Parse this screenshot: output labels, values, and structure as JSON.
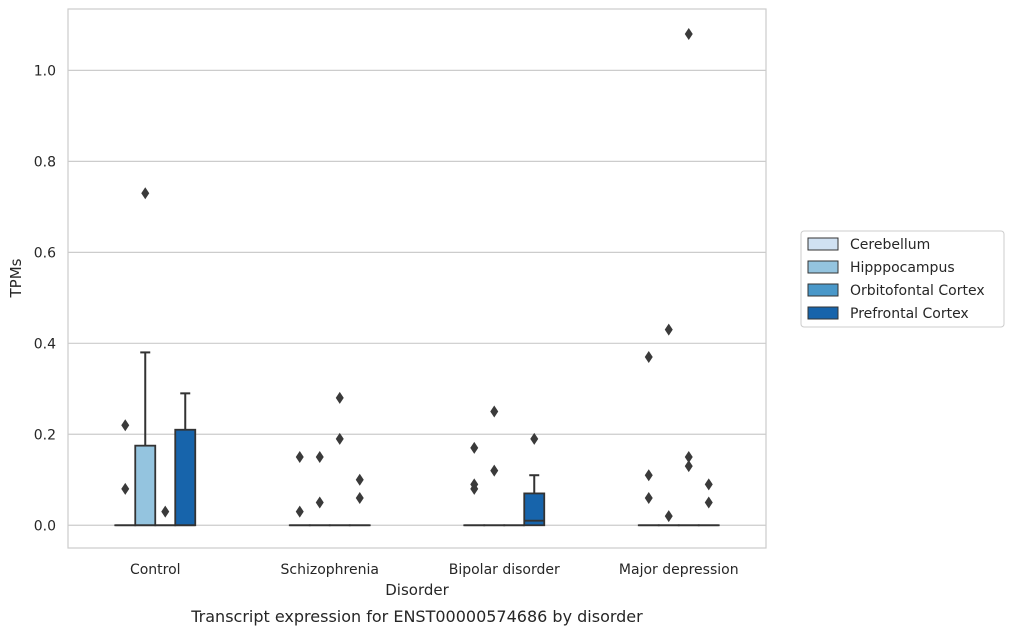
{
  "chart_data": {
    "type": "boxplot",
    "title": "",
    "caption": "Transcript expression for ENST00000574686 by disorder",
    "xlabel": "Disorder",
    "ylabel": "TPMs",
    "ylim": [
      -0.05,
      1.135
    ],
    "yticks": [
      0.0,
      0.2,
      0.4,
      0.6,
      0.8,
      1.0
    ],
    "ytick_labels": [
      "0.0",
      "0.2",
      "0.4",
      "0.6",
      "0.8",
      "1.0"
    ],
    "grid": "horizontal",
    "legend_position": "right",
    "categories": [
      "Control",
      "Schizophrenia",
      "Bipolar disorder",
      "Major depression"
    ],
    "series": [
      {
        "name": "Cerebellum",
        "color": "#d0e1f2",
        "boxes": [
          {
            "category": "Control",
            "q1": 0,
            "median": 0,
            "q3": 0,
            "whisker_low": 0,
            "whisker_high": 0,
            "outliers": [
              0.08,
              0.22
            ]
          },
          {
            "category": "Schizophrenia",
            "q1": 0,
            "median": 0,
            "q3": 0,
            "whisker_low": 0,
            "whisker_high": 0,
            "outliers": [
              0.03,
              0.15
            ]
          },
          {
            "category": "Bipolar disorder",
            "q1": 0,
            "median": 0,
            "q3": 0,
            "whisker_low": 0,
            "whisker_high": 0,
            "outliers": [
              0.08,
              0.09,
              0.17
            ]
          },
          {
            "category": "Major depression",
            "q1": 0,
            "median": 0,
            "q3": 0,
            "whisker_low": 0,
            "whisker_high": 0,
            "outliers": [
              0.06,
              0.11,
              0.37
            ]
          }
        ]
      },
      {
        "name": "Hipppocampus",
        "color": "#94c4df",
        "boxes": [
          {
            "category": "Control",
            "q1": 0,
            "median": 0,
            "q3": 0.175,
            "whisker_low": 0,
            "whisker_high": 0.38,
            "outliers": [
              0.73
            ]
          },
          {
            "category": "Schizophrenia",
            "q1": 0,
            "median": 0,
            "q3": 0,
            "whisker_low": 0,
            "whisker_high": 0,
            "outliers": [
              0.05,
              0.15
            ]
          },
          {
            "category": "Bipolar disorder",
            "q1": 0,
            "median": 0,
            "q3": 0,
            "whisker_low": 0,
            "whisker_high": 0,
            "outliers": [
              0.12,
              0.25
            ]
          },
          {
            "category": "Major depression",
            "q1": 0,
            "median": 0,
            "q3": 0,
            "whisker_low": 0,
            "whisker_high": 0,
            "outliers": [
              0.02,
              0.43
            ]
          }
        ]
      },
      {
        "name": "Orbitofontal Cortex",
        "color": "#4a98c9",
        "boxes": [
          {
            "category": "Control",
            "q1": 0,
            "median": 0,
            "q3": 0,
            "whisker_low": 0,
            "whisker_high": 0,
            "outliers": [
              0.03
            ]
          },
          {
            "category": "Schizophrenia",
            "q1": 0,
            "median": 0,
            "q3": 0,
            "whisker_low": 0,
            "whisker_high": 0,
            "outliers": [
              0.19,
              0.28
            ]
          },
          {
            "category": "Bipolar disorder",
            "q1": 0,
            "median": 0,
            "q3": 0,
            "whisker_low": 0,
            "whisker_high": 0,
            "outliers": []
          },
          {
            "category": "Major depression",
            "q1": 0,
            "median": 0,
            "q3": 0,
            "whisker_low": 0,
            "whisker_high": 0,
            "outliers": [
              0.13,
              0.15,
              1.08
            ]
          }
        ]
      },
      {
        "name": "Prefrontal Cortex",
        "color": "#1764ab",
        "boxes": [
          {
            "category": "Control",
            "q1": 0,
            "median": 0,
            "q3": 0.21,
            "whisker_low": 0,
            "whisker_high": 0.29,
            "outliers": []
          },
          {
            "category": "Schizophrenia",
            "q1": 0,
            "median": 0,
            "q3": 0,
            "whisker_low": 0,
            "whisker_high": 0,
            "outliers": [
              0.06,
              0.1
            ]
          },
          {
            "category": "Bipolar disorder",
            "q1": 0,
            "median": 0.01,
            "q3": 0.07,
            "whisker_low": 0,
            "whisker_high": 0.11,
            "outliers": [
              0.19
            ]
          },
          {
            "category": "Major depression",
            "q1": 0,
            "median": 0,
            "q3": 0,
            "whisker_low": 0,
            "whisker_high": 0,
            "outliers": [
              0.05,
              0.09
            ]
          }
        ]
      }
    ]
  }
}
